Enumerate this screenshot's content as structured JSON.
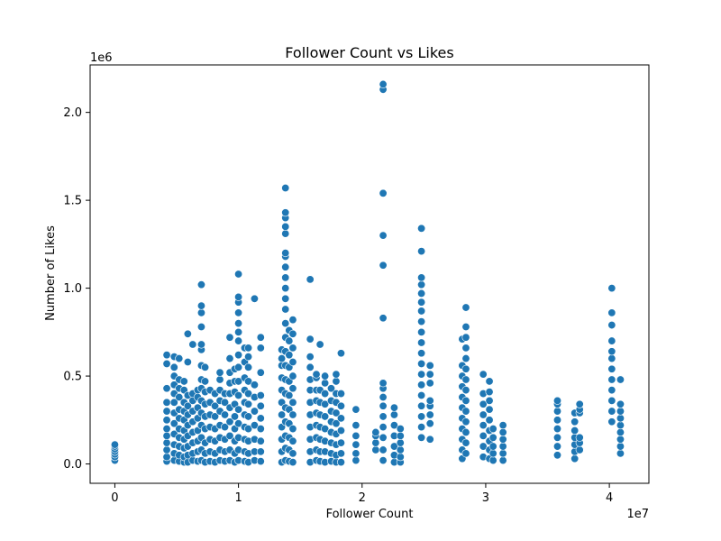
{
  "chart_data": {
    "type": "scatter",
    "title": "Follower Count vs Likes",
    "xlabel": "Follower Count",
    "ylabel": "Number of Likes",
    "x_offset_label": "1e7",
    "y_offset_label": "1e6",
    "xlim": [
      -2000000,
      43200000
    ],
    "ylim": [
      -110000,
      2270000
    ],
    "x_ticks": [
      {
        "value": 0,
        "label": "0"
      },
      {
        "value": 10000000,
        "label": "1"
      },
      {
        "value": 20000000,
        "label": "2"
      },
      {
        "value": 30000000,
        "label": "3"
      },
      {
        "value": 40000000,
        "label": "4"
      }
    ],
    "y_ticks": [
      {
        "value": 0,
        "label": "0.0"
      },
      {
        "value": 500000,
        "label": "0.5"
      },
      {
        "value": 1000000,
        "label": "1.0"
      },
      {
        "value": 1500000,
        "label": "1.5"
      },
      {
        "value": 2000000,
        "label": "2.0"
      }
    ],
    "grid": false,
    "marker_color": "#1f77b4",
    "series": [
      {
        "columns": [
          {
            "x": 0,
            "ys": [
              20000,
              40000,
              55000,
              70000,
              85000,
              100000,
              110000
            ]
          },
          {
            "x": 4200000,
            "ys": [
              15000,
              40000,
              80000,
              120000,
              160000,
              200000,
              250000,
              300000,
              350000,
              430000,
              570000,
              620000
            ]
          },
          {
            "x": 4800000,
            "ys": [
              20000,
              60000,
              110000,
              170000,
              230000,
              290000,
              350000,
              400000,
              450000,
              500000,
              550000,
              610000
            ]
          },
          {
            "x": 5200000,
            "ys": [
              15000,
              50000,
              100000,
              150000,
              200000,
              260000,
              310000,
              380000,
              430000,
              480000,
              600000
            ]
          },
          {
            "x": 5600000,
            "ys": [
              10000,
              40000,
              90000,
              140000,
              190000,
              250000,
              300000,
              350000,
              420000,
              470000
            ]
          },
          {
            "x": 5900000,
            "ys": [
              10000,
              50000,
              100000,
              160000,
              220000,
              280000,
              330000,
              390000,
              580000,
              740000
            ]
          },
          {
            "x": 6300000,
            "ys": [
              20000,
              60000,
              120000,
              180000,
              240000,
              300000,
              360000,
              400000,
              680000
            ]
          },
          {
            "x": 6700000,
            "ys": [
              15000,
              70000,
              130000,
              190000,
              260000,
              320000,
              380000,
              420000
            ]
          },
          {
            "x": 7000000,
            "ys": [
              20000,
              80000,
              150000,
              220000,
              290000,
              360000,
              430000,
              480000,
              560000,
              650000,
              680000,
              780000,
              860000,
              900000,
              1020000
            ]
          },
          {
            "x": 7300000,
            "ys": [
              10000,
              60000,
              120000,
              200000,
              270000,
              340000,
              410000,
              470000,
              550000
            ]
          },
          {
            "x": 7700000,
            "ys": [
              15000,
              70000,
              140000,
              210000,
              280000,
              350000,
              420000
            ]
          },
          {
            "x": 8100000,
            "ys": [
              10000,
              60000,
              130000,
              200000,
              270000,
              330000,
              400000
            ]
          },
          {
            "x": 8500000,
            "ys": [
              20000,
              80000,
              150000,
              220000,
              300000,
              360000,
              420000,
              480000,
              520000
            ]
          },
          {
            "x": 8900000,
            "ys": [
              15000,
              70000,
              140000,
              210000,
              280000,
              350000,
              400000
            ]
          },
          {
            "x": 9300000,
            "ys": [
              20000,
              80000,
              160000,
              240000,
              320000,
              400000,
              460000,
              520000,
              600000,
              720000
            ]
          },
          {
            "x": 9700000,
            "ys": [
              10000,
              60000,
              130000,
              200000,
              270000,
              340000,
              410000,
              470000,
              540000
            ]
          },
          {
            "x": 10000000,
            "ys": [
              20000,
              80000,
              150000,
              230000,
              310000,
              390000,
              470000,
              550000,
              620000,
              700000,
              750000,
              800000,
              860000,
              920000,
              950000,
              1080000
            ]
          },
          {
            "x": 10500000,
            "ys": [
              15000,
              70000,
              140000,
              210000,
              280000,
              350000,
              420000,
              490000,
              580000,
              660000
            ]
          },
          {
            "x": 10800000,
            "ys": [
              10000,
              60000,
              130000,
              200000,
              270000,
              340000,
              400000,
              470000,
              550000,
              610000,
              660000
            ]
          },
          {
            "x": 11300000,
            "ys": [
              20000,
              70000,
              140000,
              220000,
              300000,
              380000,
              450000,
              940000
            ]
          },
          {
            "x": 11800000,
            "ys": [
              15000,
              70000,
              130000,
              200000,
              260000,
              330000,
              390000,
              520000,
              660000,
              720000
            ]
          },
          {
            "x": 13500000,
            "ys": [
              10000,
              70000,
              140000,
              210000,
              280000,
              350000,
              420000,
              490000,
              560000,
              600000,
              650000
            ]
          },
          {
            "x": 13800000,
            "ys": [
              20000,
              90000,
              160000,
              240000,
              320000,
              400000,
              480000,
              560000,
              640000,
              720000,
              800000,
              880000,
              940000,
              1000000,
              1060000,
              1120000,
              1180000,
              1200000,
              1310000,
              1350000,
              1400000,
              1430000,
              1570000
            ]
          },
          {
            "x": 14100000,
            "ys": [
              15000,
              80000,
              150000,
              230000,
              310000,
              390000,
              470000,
              550000,
              620000,
              700000,
              760000
            ]
          },
          {
            "x": 14400000,
            "ys": [
              10000,
              60000,
              130000,
              200000,
              280000,
              350000,
              430000,
              500000,
              580000,
              660000,
              740000,
              820000
            ]
          },
          {
            "x": 15800000,
            "ys": [
              10000,
              70000,
              140000,
              210000,
              280000,
              350000,
              420000,
              480000,
              550000,
              610000,
              710000,
              1050000
            ]
          },
          {
            "x": 16300000,
            "ys": [
              20000,
              80000,
              150000,
              220000,
              290000,
              360000,
              420000,
              490000,
              510000
            ]
          },
          {
            "x": 16600000,
            "ys": [
              15000,
              70000,
              140000,
              210000,
              280000,
              350000,
              420000,
              680000
            ]
          },
          {
            "x": 17000000,
            "ys": [
              10000,
              70000,
              130000,
              200000,
              270000,
              340000,
              400000,
              460000,
              500000
            ]
          },
          {
            "x": 17500000,
            "ys": [
              15000,
              60000,
              120000,
              180000,
              240000,
              300000,
              360000,
              430000
            ]
          },
          {
            "x": 17900000,
            "ys": [
              10000,
              50000,
              110000,
              170000,
              230000,
              290000,
              350000,
              400000,
              470000,
              510000
            ]
          },
          {
            "x": 18300000,
            "ys": [
              10000,
              60000,
              120000,
              190000,
              260000,
              330000,
              400000,
              630000
            ]
          },
          {
            "x": 19500000,
            "ys": [
              20000,
              60000,
              110000,
              160000,
              220000,
              310000
            ]
          },
          {
            "x": 21100000,
            "ys": [
              80000,
              120000,
              160000,
              180000
            ]
          },
          {
            "x": 21700000,
            "ys": [
              20000,
              80000,
              150000,
              210000,
              270000,
              330000,
              380000,
              430000,
              460000,
              830000,
              1130000,
              1300000,
              1540000,
              2130000,
              2160000
            ]
          },
          {
            "x": 22600000,
            "ys": [
              10000,
              50000,
              100000,
              160000,
              220000,
              280000,
              320000
            ]
          },
          {
            "x": 23100000,
            "ys": [
              10000,
              40000,
              80000,
              120000,
              160000,
              200000
            ]
          },
          {
            "x": 24800000,
            "ys": [
              150000,
              210000,
              270000,
              330000,
              390000,
              450000,
              510000,
              570000,
              630000,
              690000,
              750000,
              810000,
              870000,
              920000,
              970000,
              1020000,
              1060000,
              1210000,
              1340000
            ]
          },
          {
            "x": 25500000,
            "ys": [
              140000,
              230000,
              280000,
              330000,
              360000,
              460000,
              510000,
              560000
            ]
          },
          {
            "x": 28100000,
            "ys": [
              30000,
              80000,
              140000,
              200000,
              260000,
              320000,
              380000,
              440000,
              500000,
              560000,
              710000
            ]
          },
          {
            "x": 28400000,
            "ys": [
              60000,
              120000,
              180000,
              240000,
              300000,
              360000,
              420000,
              480000,
              540000,
              600000,
              660000,
              720000,
              780000,
              890000
            ]
          },
          {
            "x": 29800000,
            "ys": [
              40000,
              100000,
              160000,
              220000,
              280000,
              340000,
              400000,
              510000
            ]
          },
          {
            "x": 30300000,
            "ys": [
              30000,
              80000,
              130000,
              190000,
              250000,
              310000,
              360000,
              410000,
              470000
            ]
          },
          {
            "x": 30600000,
            "ys": [
              20000,
              60000,
              100000,
              150000,
              200000
            ]
          },
          {
            "x": 31400000,
            "ys": [
              20000,
              60000,
              100000,
              140000,
              180000,
              220000
            ]
          },
          {
            "x": 35800000,
            "ys": [
              50000,
              100000,
              150000,
              200000,
              250000,
              300000,
              340000,
              360000
            ]
          },
          {
            "x": 37200000,
            "ys": [
              30000,
              70000,
              110000,
              150000,
              190000,
              240000,
              290000
            ]
          },
          {
            "x": 37600000,
            "ys": [
              80000,
              120000,
              150000,
              290000,
              310000,
              340000
            ]
          },
          {
            "x": 40200000,
            "ys": [
              240000,
              300000,
              360000,
              420000,
              480000,
              540000,
              600000,
              640000,
              700000,
              790000,
              860000,
              1000000
            ]
          },
          {
            "x": 40900000,
            "ys": [
              60000,
              100000,
              140000,
              180000,
              220000,
              260000,
              300000,
              340000,
              480000
            ]
          }
        ]
      }
    ]
  }
}
